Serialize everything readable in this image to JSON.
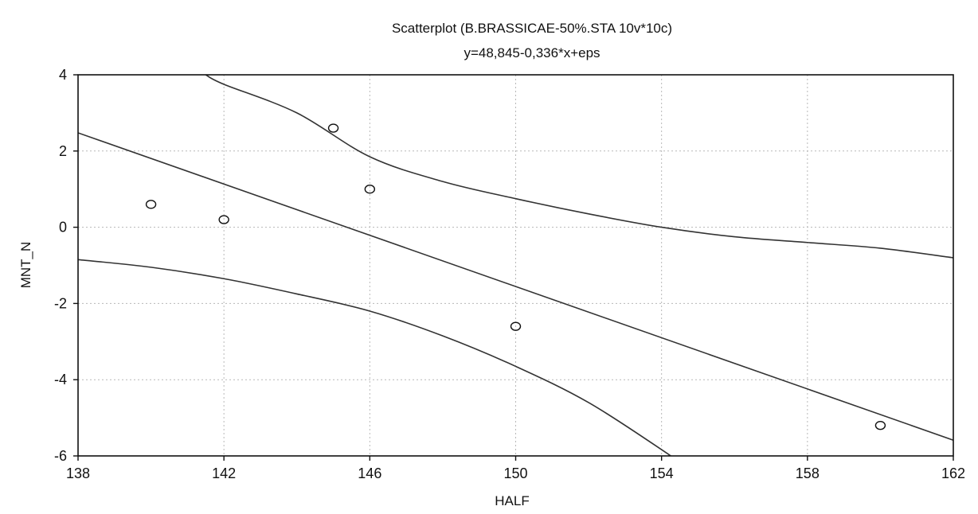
{
  "chart_data": {
    "type": "scatter",
    "title": "Scatterplot (B.BRASSICAE-50%.STA 10v*10c)",
    "subtitle": "y=48,845-0,336*x+eps",
    "xlabel": "HALF",
    "ylabel": "MNT_N",
    "xlim": [
      138,
      162
    ],
    "ylim": [
      -6,
      4
    ],
    "x_ticks": [
      138,
      142,
      146,
      150,
      154,
      158,
      162
    ],
    "y_ticks": [
      4,
      2,
      0,
      -2,
      -4,
      -6
    ],
    "x_tick_labels": [
      "138",
      "142",
      "146",
      "150",
      "154",
      "158",
      "162"
    ],
    "y_tick_labels": [
      "4",
      "2",
      "0",
      "-2",
      "-4",
      "-6"
    ],
    "grid": true,
    "legend": "none",
    "points": [
      {
        "x": 140,
        "y": 0.6
      },
      {
        "x": 142,
        "y": 0.2
      },
      {
        "x": 145,
        "y": 2.6
      },
      {
        "x": 146,
        "y": 1.0
      },
      {
        "x": 150,
        "y": -2.6
      },
      {
        "x": 160,
        "y": -5.2
      }
    ],
    "regression": {
      "intercept": 48.845,
      "slope": -0.336
    },
    "confidence_band": {
      "upper": [
        {
          "x": 141.5,
          "y": 4.0
        },
        {
          "x": 142,
          "y": 3.75
        },
        {
          "x": 144,
          "y": 3.0
        },
        {
          "x": 146,
          "y": 1.85
        },
        {
          "x": 148,
          "y": 1.2
        },
        {
          "x": 150,
          "y": 0.75
        },
        {
          "x": 152,
          "y": 0.35
        },
        {
          "x": 154,
          "y": 0.0
        },
        {
          "x": 156,
          "y": -0.25
        },
        {
          "x": 158,
          "y": -0.4
        },
        {
          "x": 160,
          "y": -0.55
        },
        {
          "x": 162,
          "y": -0.8
        }
      ],
      "lower": [
        {
          "x": 138,
          "y": -0.85
        },
        {
          "x": 140,
          "y": -1.05
        },
        {
          "x": 142,
          "y": -1.35
        },
        {
          "x": 144,
          "y": -1.75
        },
        {
          "x": 146,
          "y": -2.2
        },
        {
          "x": 148,
          "y": -2.85
        },
        {
          "x": 150,
          "y": -3.65
        },
        {
          "x": 152,
          "y": -4.6
        },
        {
          "x": 154.1,
          "y": -5.9
        },
        {
          "x": 154.2,
          "y": -6.0
        }
      ]
    },
    "colors": {
      "line": "#333333",
      "marker": "#111111",
      "grid": "#b8b8b8",
      "background": "#ffffff",
      "frame": "#111111"
    }
  }
}
